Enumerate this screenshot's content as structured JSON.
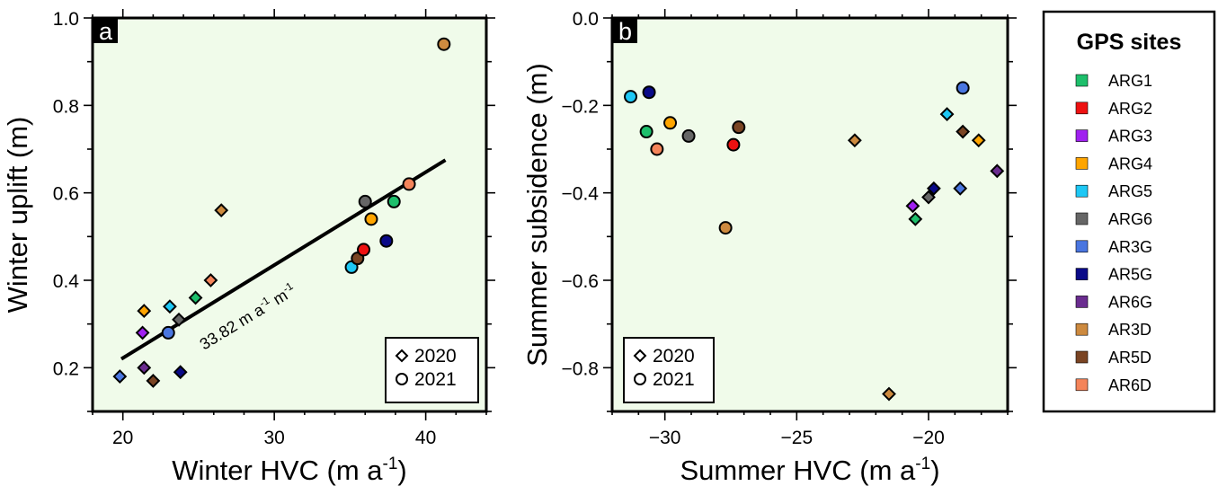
{
  "chart_data": [
    {
      "type": "scatter",
      "panel_label": "a",
      "xlabel": "Winter HVC (m a",
      "xlabel_sup": "-1",
      "xlabel_end": ")",
      "ylabel": "Winter uplift (m)",
      "xlim": [
        18,
        44
      ],
      "ylim": [
        0.1,
        1.0
      ],
      "xticks": [
        20,
        30,
        40
      ],
      "xtick_labels": [
        "20",
        "30",
        "40"
      ],
      "yticks": [
        0.2,
        0.4,
        0.6,
        0.8,
        1.0
      ],
      "ytick_labels": [
        "0.2",
        "0.4",
        "0.6",
        "0.8",
        "1.0"
      ],
      "background": "#f0fbea",
      "legend_position": "bottom-right",
      "legend": [
        {
          "marker": "diamond",
          "label": "2020"
        },
        {
          "marker": "circle",
          "label": "2021"
        }
      ],
      "fit_line": {
        "x": [
          19.9,
          41.3
        ],
        "y": [
          0.22,
          0.675
        ],
        "slope_label": "33.82 m a",
        "slope_sup1": "-1",
        "slope_mid": " m",
        "slope_sup2": "-1"
      },
      "points": [
        {
          "site": "AR3G",
          "year": "2020",
          "x": 19.8,
          "y": 0.18
        },
        {
          "site": "ARG4",
          "year": "2020",
          "x": 21.4,
          "y": 0.33
        },
        {
          "site": "ARG3",
          "year": "2020",
          "x": 21.3,
          "y": 0.28
        },
        {
          "site": "AR6G",
          "year": "2020",
          "x": 21.4,
          "y": 0.2
        },
        {
          "site": "AR5D",
          "year": "2020",
          "x": 22.0,
          "y": 0.17
        },
        {
          "site": "ARG5",
          "year": "2020",
          "x": 23.1,
          "y": 0.34
        },
        {
          "site": "ARG6",
          "year": "2020",
          "x": 23.7,
          "y": 0.31
        },
        {
          "site": "AR5G",
          "year": "2020",
          "x": 23.8,
          "y": 0.19
        },
        {
          "site": "ARG1",
          "year": "2020",
          "x": 24.8,
          "y": 0.36
        },
        {
          "site": "AR6D",
          "year": "2020",
          "x": 25.8,
          "y": 0.4
        },
        {
          "site": "AR3D",
          "year": "2020",
          "x": 26.5,
          "y": 0.56
        },
        {
          "site": "AR3G",
          "year": "2021",
          "x": 23.0,
          "y": 0.28
        },
        {
          "site": "ARG5",
          "year": "2021",
          "x": 35.1,
          "y": 0.43
        },
        {
          "site": "AR5D",
          "year": "2021",
          "x": 35.5,
          "y": 0.45
        },
        {
          "site": "ARG2",
          "year": "2021",
          "x": 35.9,
          "y": 0.47
        },
        {
          "site": "ARG6",
          "year": "2021",
          "x": 36.0,
          "y": 0.58
        },
        {
          "site": "ARG4",
          "year": "2021",
          "x": 36.4,
          "y": 0.54
        },
        {
          "site": "AR5G",
          "year": "2021",
          "x": 37.4,
          "y": 0.49
        },
        {
          "site": "ARG1",
          "year": "2021",
          "x": 37.9,
          "y": 0.58
        },
        {
          "site": "AR6D",
          "year": "2021",
          "x": 38.9,
          "y": 0.62
        },
        {
          "site": "AR3D",
          "year": "2021",
          "x": 41.2,
          "y": 0.94
        }
      ]
    },
    {
      "type": "scatter",
      "panel_label": "b",
      "xlabel": "Summer HVC (m a",
      "xlabel_sup": "-1",
      "xlabel_end": ")",
      "ylabel": "Summer subsidence (m)",
      "xlim": [
        -32,
        -17
      ],
      "ylim": [
        -0.9,
        0.0
      ],
      "xticks": [
        -30,
        -25,
        -20
      ],
      "xtick_labels": [
        "−30",
        "−25",
        "−20"
      ],
      "yticks": [
        0.0,
        -0.2,
        -0.4,
        -0.6,
        -0.8
      ],
      "ytick_labels": [
        "0.0",
        "−0.2",
        "−0.4",
        "−0.6",
        "−0.8"
      ],
      "background": "#f0fbea",
      "legend_position": "bottom-left",
      "legend": [
        {
          "marker": "diamond",
          "label": "2020"
        },
        {
          "marker": "circle",
          "label": "2021"
        }
      ],
      "points": [
        {
          "site": "ARG5",
          "year": "2021",
          "x": -31.3,
          "y": -0.18
        },
        {
          "site": "AR5G",
          "year": "2021",
          "x": -30.6,
          "y": -0.17
        },
        {
          "site": "ARG1",
          "year": "2021",
          "x": -30.7,
          "y": -0.26
        },
        {
          "site": "AR6D",
          "year": "2021",
          "x": -30.3,
          "y": -0.3
        },
        {
          "site": "ARG4",
          "year": "2021",
          "x": -29.8,
          "y": -0.24
        },
        {
          "site": "ARG6",
          "year": "2021",
          "x": -29.1,
          "y": -0.27
        },
        {
          "site": "AR3D",
          "year": "2021",
          "x": -27.7,
          "y": -0.48
        },
        {
          "site": "ARG2",
          "year": "2021",
          "x": -27.4,
          "y": -0.29
        },
        {
          "site": "AR5D",
          "year": "2021",
          "x": -27.2,
          "y": -0.25
        },
        {
          "site": "AR3G",
          "year": "2021",
          "x": -18.7,
          "y": -0.16
        },
        {
          "site": "AR3D",
          "year": "2020",
          "x": -22.8,
          "y": -0.28
        },
        {
          "site": "AR3D",
          "year": "2020",
          "x": -21.5,
          "y": -0.86
        },
        {
          "site": "ARG3",
          "year": "2020",
          "x": -20.6,
          "y": -0.43
        },
        {
          "site": "ARG1",
          "year": "2020",
          "x": -20.5,
          "y": -0.46
        },
        {
          "site": "ARG6",
          "year": "2020",
          "x": -20.0,
          "y": -0.41
        },
        {
          "site": "AR5G",
          "year": "2020",
          "x": -19.8,
          "y": -0.39
        },
        {
          "site": "ARG5",
          "year": "2020",
          "x": -19.3,
          "y": -0.22
        },
        {
          "site": "AR3G",
          "year": "2020",
          "x": -18.8,
          "y": -0.39
        },
        {
          "site": "AR5D",
          "year": "2020",
          "x": -18.7,
          "y": -0.26
        },
        {
          "site": "ARG4",
          "year": "2020",
          "x": -18.1,
          "y": -0.28
        },
        {
          "site": "AR6G",
          "year": "2020",
          "x": -17.4,
          "y": -0.35
        }
      ]
    }
  ],
  "site_legend": {
    "title": "GPS sites",
    "items": [
      {
        "label": "ARG1",
        "color": "#1dbf6b"
      },
      {
        "label": "ARG2",
        "color": "#ee1111"
      },
      {
        "label": "ARG3",
        "color": "#a020f0"
      },
      {
        "label": "ARG4",
        "color": "#ffa500"
      },
      {
        "label": "ARG5",
        "color": "#1ec8f5"
      },
      {
        "label": "ARG6",
        "color": "#666666"
      },
      {
        "label": "AR3G",
        "color": "#4a76e0"
      },
      {
        "label": "AR5G",
        "color": "#0a0a88"
      },
      {
        "label": "AR6G",
        "color": "#6a2c8f"
      },
      {
        "label": "AR3D",
        "color": "#cd8a3f"
      },
      {
        "label": "AR5D",
        "color": "#7a4423"
      },
      {
        "label": "AR6D",
        "color": "#f4845a"
      }
    ]
  }
}
